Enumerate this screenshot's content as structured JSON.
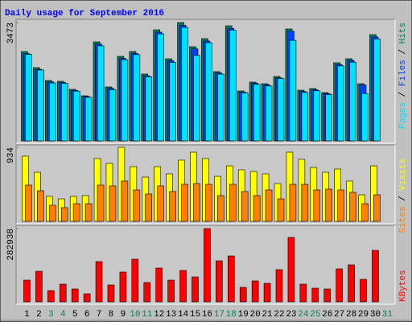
{
  "title": "Daily usage for September 2016",
  "legend_separator": " / ",
  "chart_data": [
    {
      "type": "bar",
      "ylim": [
        0,
        3473
      ],
      "yticks": [
        3473
      ],
      "series": [
        {
          "name": "Hits",
          "color": "#00805c",
          "values": [
            2622,
            2150,
            1772,
            1748,
            1512,
            1323,
            2906,
            1583,
            2481,
            2622,
            1961,
            3260,
            2410,
            3473,
            2764,
            3000,
            2032,
            3378,
            1465,
            1725,
            1677,
            1890,
            3284,
            1488,
            1536,
            1417,
            2292,
            2410,
            1677,
            3119,
            null
          ]
        },
        {
          "name": "Files",
          "color": "#0040ff",
          "values": [
            2560,
            2100,
            1730,
            1710,
            1480,
            1300,
            2840,
            1540,
            2420,
            2570,
            1910,
            3190,
            2350,
            3390,
            2700,
            2930,
            1990,
            3300,
            1430,
            1690,
            1640,
            1850,
            3220,
            1450,
            1500,
            1390,
            2240,
            2360,
            1640,
            3050,
            null
          ]
        },
        {
          "name": "Pages",
          "color": "#00e0ff",
          "values": [
            2540,
            2080,
            1700,
            1690,
            1460,
            1280,
            2790,
            1500,
            2380,
            2530,
            1880,
            3140,
            2300,
            3330,
            2510,
            2880,
            1960,
            3250,
            1410,
            1660,
            1610,
            1830,
            2950,
            1420,
            1470,
            1360,
            2200,
            2310,
            1390,
            2990,
            null
          ]
        }
      ]
    },
    {
      "type": "bar",
      "ylim": [
        0,
        934
      ],
      "yticks": [
        934
      ],
      "series": [
        {
          "name": "Visits",
          "color": "#ffff00",
          "values": [
            822,
            619,
            315,
            284,
            315,
            325,
            792,
            731,
            934,
            690,
            558,
            690,
            599,
            772,
            873,
            792,
            568,
            700,
            650,
            629,
            599,
            477,
            873,
            782,
            680,
            619,
            660,
            508,
            335,
            700,
            null
          ]
        },
        {
          "name": "Sites",
          "color": "#ff8000",
          "values": [
            457,
            386,
            203,
            173,
            223,
            223,
            457,
            447,
            508,
            396,
            345,
            447,
            376,
            467,
            477,
            467,
            325,
            467,
            376,
            325,
            396,
            284,
            467,
            467,
            396,
            406,
            396,
            366,
            223,
            335,
            null
          ]
        }
      ]
    },
    {
      "type": "bar",
      "ylim": [
        0,
        282938
      ],
      "yticks": [
        282938
      ],
      "categories": [
        "1",
        "2",
        "3",
        "4",
        "5",
        "6",
        "7",
        "8",
        "9",
        "10",
        "11",
        "12",
        "13",
        "14",
        "15",
        "16",
        "17",
        "18",
        "19",
        "20",
        "21",
        "22",
        "23",
        "24",
        "25",
        "26",
        "27",
        "28",
        "29",
        "30",
        "31"
      ],
      "category_colors": [
        "#000000",
        "#000000",
        "#00805c",
        "#00805c",
        "#000000",
        "#000000",
        "#000000",
        "#000000",
        "#000000",
        "#00805c",
        "#00805c",
        "#000000",
        "#000000",
        "#000000",
        "#000000",
        "#000000",
        "#00805c",
        "#00805c",
        "#000000",
        "#000000",
        "#000000",
        "#000000",
        "#000000",
        "#00805c",
        "#00805c",
        "#000000",
        "#000000",
        "#000000",
        "#000000",
        "#000000",
        "#00805c"
      ],
      "series": [
        {
          "name": "KBytes",
          "color": "#ff0000",
          "values": [
            83948,
            118148,
            43528,
            68404,
            49748,
            31092,
            155460,
            65294,
            115038,
            164788,
            74622,
            130586,
            83948,
            121258,
            96384,
            282938,
            158570,
            177224,
            55966,
            80838,
            71512,
            124368,
            248738,
            68404,
            52858,
            49748,
            127476,
            143022,
            87058,
            198988,
            null
          ]
        }
      ]
    }
  ]
}
